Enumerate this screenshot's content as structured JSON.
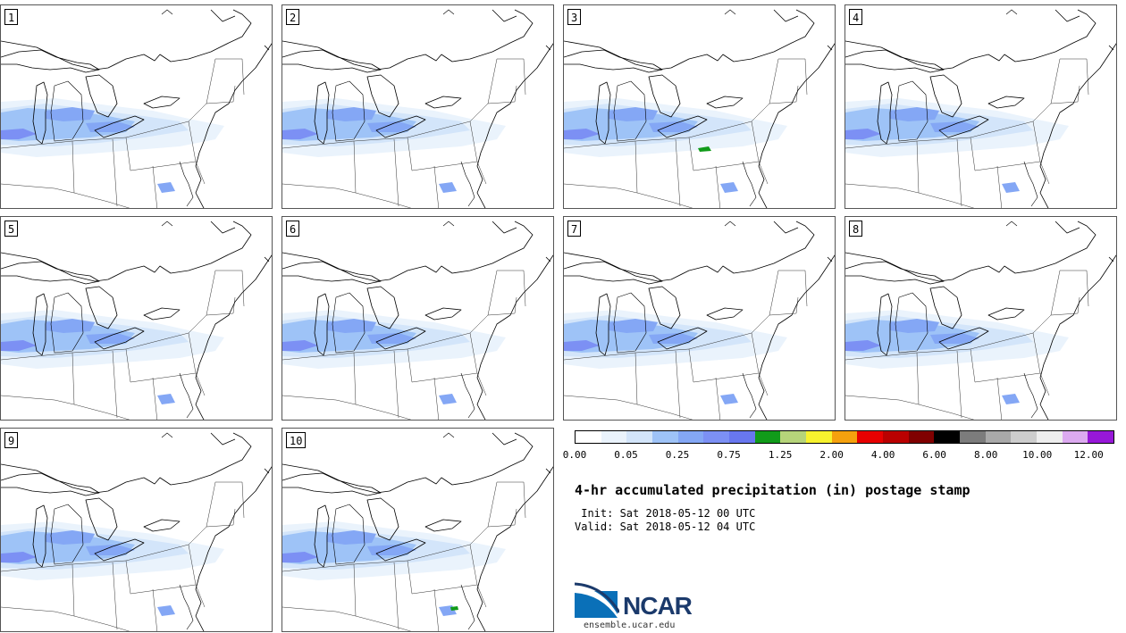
{
  "panels": [
    {
      "label": "1"
    },
    {
      "label": "2"
    },
    {
      "label": "3"
    },
    {
      "label": "4"
    },
    {
      "label": "5"
    },
    {
      "label": "6"
    },
    {
      "label": "7"
    },
    {
      "label": "8"
    },
    {
      "label": "9"
    },
    {
      "label": "10"
    }
  ],
  "colorbar": {
    "colors": [
      "#ffffff",
      "#eaf3fc",
      "#d3e5fa",
      "#9ec3f7",
      "#84a7f5",
      "#7c90f4",
      "#6877ef",
      "#119b1a",
      "#b6d47a",
      "#f7f22e",
      "#f5a10e",
      "#e70000",
      "#ba0000",
      "#800000",
      "#000000",
      "#7c7c7c",
      "#a9a9a9",
      "#cdcdcd",
      "#eeeeee",
      "#dcaaf0",
      "#9718d8"
    ],
    "tick_labels": [
      "0.00",
      "0.05",
      "0.25",
      "0.75",
      "1.25",
      "2.00",
      "4.00",
      "6.00",
      "8.00",
      "10.00",
      "12.00"
    ]
  },
  "title": "4-hr accumulated precipitation (in) postage stamp",
  "init_text": " Init: Sat 2018-05-12 00 UTC",
  "valid_text": "Valid: Sat 2018-05-12 04 UTC",
  "logo_text": "NCAR",
  "site": "ensemble.ucar.edu"
}
